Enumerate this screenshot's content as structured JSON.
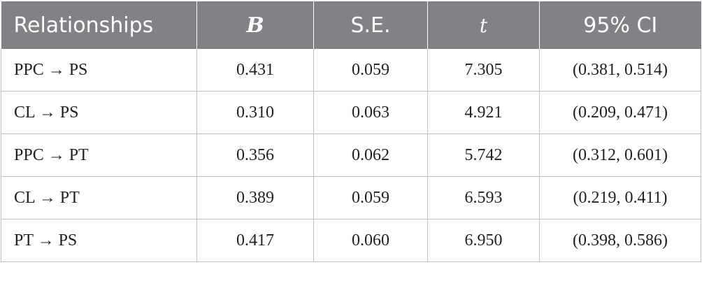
{
  "table": {
    "headers": [
      "Relationships",
      "B",
      "S.E.",
      "t",
      "95% CI"
    ],
    "rows": [
      [
        "PPC → PS",
        "0.431",
        "0.059",
        "7.305",
        "(0.381, 0.514)"
      ],
      [
        "CL → PS",
        "0.310",
        "0.063",
        "4.921",
        "(0.209, 0.471)"
      ],
      [
        "PPC → PT",
        "0.356",
        "0.062",
        "5.742",
        "(0.312, 0.601)"
      ],
      [
        "CL → PT",
        "0.389",
        "0.059",
        "6.593",
        "(0.219, 0.411)"
      ],
      [
        "PT → PS",
        "0.417",
        "0.060",
        "6.950",
        "(0.398, 0.586)"
      ]
    ]
  },
  "colors": {
    "header_bg": "#808285",
    "header_text": "#ffffff",
    "grid_line": "#bcbec0",
    "body_text": "#231f20"
  }
}
